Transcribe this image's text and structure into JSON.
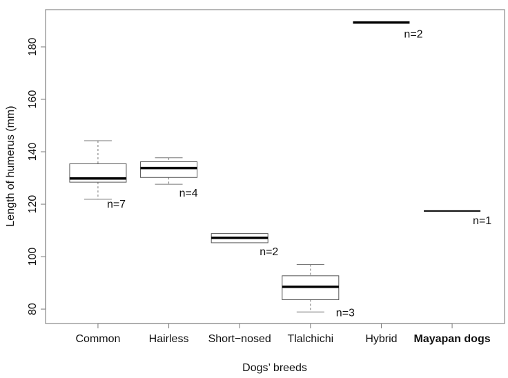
{
  "chart_data": {
    "type": "boxplot",
    "title": "",
    "xlabel": "Dogs’ breeds",
    "ylabel": "Length of humerus (mm)",
    "ylim": [
      74.5,
      194.2
    ],
    "yticks": [
      80,
      100,
      120,
      140,
      160,
      180
    ],
    "grid": false,
    "categories": [
      "Common",
      "Hairless",
      "Short−nosed",
      "Tlalchichi",
      "Hybrid",
      "Mayapan dogs"
    ],
    "highlighted_category": "Mayapan dogs",
    "boxes": [
      {
        "category": "Common",
        "n_label": "n=7",
        "min": 121.9,
        "q1": 128.4,
        "median": 129.8,
        "q3": 135.4,
        "max": 144.2
      },
      {
        "category": "Hairless",
        "n_label": "n=4",
        "min": 127.6,
        "q1": 130.2,
        "median": 133.8,
        "q3": 136.2,
        "max": 137.7
      },
      {
        "category": "Short−nosed",
        "n_label": "n=2",
        "min": 105.3,
        "q1": 105.3,
        "median": 107.2,
        "q3": 108.8,
        "max": 108.8
      },
      {
        "category": "Tlalchichi",
        "n_label": "n=3",
        "min": 78.9,
        "q1": 83.6,
        "median": 88.5,
        "q3": 92.7,
        "max": 97.0
      },
      {
        "category": "Hybrid",
        "n_label": "n=2",
        "min": 189.2,
        "q1": 189.2,
        "median": 189.3,
        "q3": 189.4,
        "max": 189.4
      },
      {
        "category": "Mayapan dogs",
        "n_label": "n=1",
        "min": 117.4,
        "q1": 117.4,
        "median": 117.4,
        "q3": 117.4,
        "max": 117.4
      }
    ],
    "colors": {
      "box": "#555555",
      "median": "#000000",
      "whisker": "#777777",
      "axis": "#777777"
    }
  }
}
